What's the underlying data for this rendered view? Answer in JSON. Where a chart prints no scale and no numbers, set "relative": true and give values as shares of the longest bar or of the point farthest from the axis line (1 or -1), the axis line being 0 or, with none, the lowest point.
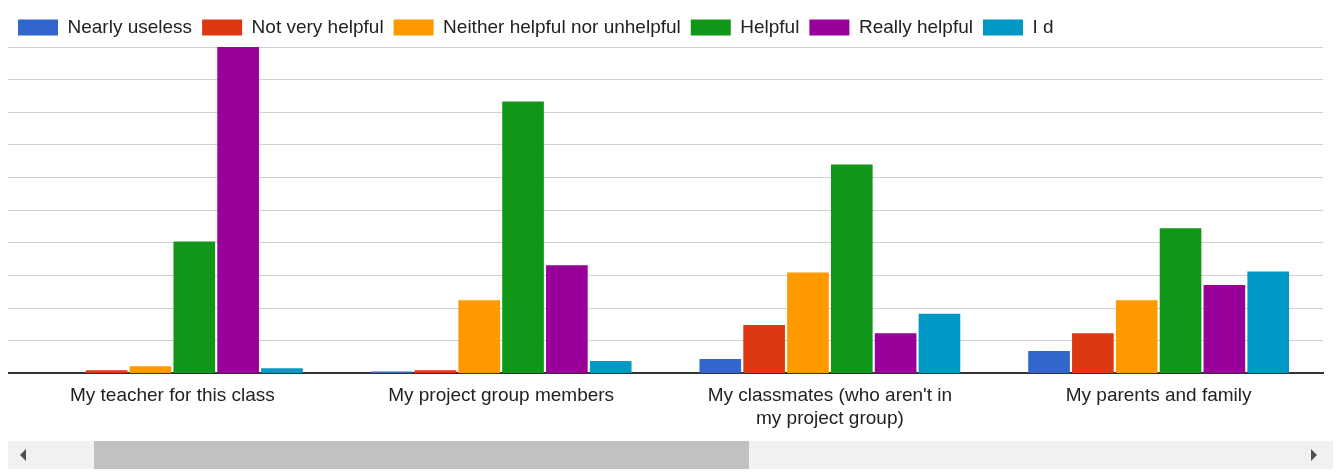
{
  "chart_data": {
    "type": "bar",
    "relative": true,
    "grid": true,
    "legend": "top",
    "categories": [
      "My teacher for this class",
      "My project group members",
      "My classmates (who aren't in my project group)",
      "My parents and family"
    ],
    "series": [
      {
        "name": "Nearly useless",
        "color": "#3366cc",
        "values": [
          0,
          0.006,
          0.044,
          0.069
        ]
      },
      {
        "name": "Not very helpful",
        "color": "#dc3912",
        "values": [
          0.01,
          0.01,
          0.148,
          0.123
        ]
      },
      {
        "name": "Neither helpful nor unhelpful",
        "color": "#ff9900",
        "values": [
          0.022,
          0.224,
          0.309,
          0.224
        ]
      },
      {
        "name": "Helpful",
        "color": "#109618",
        "values": [
          0.404,
          0.833,
          0.64,
          0.445
        ]
      },
      {
        "name": "Really helpful",
        "color": "#990099",
        "values": [
          1,
          0.331,
          0.123,
          0.271
        ]
      },
      {
        "name": "I d",
        "color": "#0099c6",
        "values": [
          0.016,
          0.038,
          0.183,
          0.312
        ]
      }
    ]
  }
}
